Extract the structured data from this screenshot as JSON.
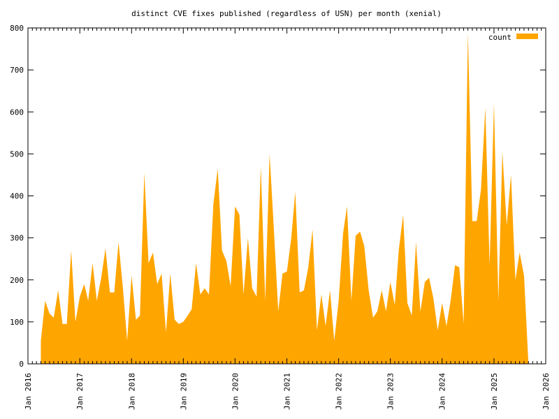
{
  "chart_data": {
    "type": "area",
    "title": "distinct CVE fixes published (regardless of USN) per month (xenial)",
    "xlabel": "",
    "ylabel": "",
    "color": "#ffa500",
    "legend": {
      "position": "top-right",
      "label": "count"
    },
    "grid": false,
    "ylim": [
      0,
      800
    ],
    "yticks": [
      0,
      100,
      200,
      300,
      400,
      500,
      600,
      700,
      800
    ],
    "xlim": [
      "2016-01-01",
      "2026-01-01"
    ],
    "xticks": [
      "2016-01-01",
      "2017-01-01",
      "2018-01-01",
      "2019-01-01",
      "2020-01-01",
      "2021-01-01",
      "2022-01-01",
      "2023-01-01",
      "2024-01-01",
      "2025-01-01",
      "2026-01-01"
    ],
    "xtick_labels": [
      "Jan 2016",
      "Jan 2017",
      "Jan 2018",
      "Jan 2019",
      "Jan 2020",
      "Jan 2021",
      "Jan 2022",
      "Jan 2023",
      "Jan 2024",
      "Jan 2025",
      "Jan 2026"
    ],
    "series": [
      {
        "name": "count",
        "x": [
          "2016-04-01",
          "2016-05-01",
          "2016-06-01",
          "2016-07-01",
          "2016-08-01",
          "2016-09-01",
          "2016-10-01",
          "2016-11-01",
          "2016-12-01",
          "2017-01-01",
          "2017-02-01",
          "2017-03-01",
          "2017-04-01",
          "2017-05-01",
          "2017-06-01",
          "2017-07-01",
          "2017-08-01",
          "2017-09-01",
          "2017-10-01",
          "2017-11-01",
          "2017-12-01",
          "2018-01-01",
          "2018-02-01",
          "2018-03-01",
          "2018-04-01",
          "2018-05-01",
          "2018-06-01",
          "2018-07-01",
          "2018-08-01",
          "2018-09-01",
          "2018-10-01",
          "2018-11-01",
          "2018-12-01",
          "2019-01-01",
          "2019-02-01",
          "2019-03-01",
          "2019-04-01",
          "2019-05-01",
          "2019-06-01",
          "2019-07-01",
          "2019-08-01",
          "2019-09-01",
          "2019-10-01",
          "2019-11-01",
          "2019-12-01",
          "2020-01-01",
          "2020-02-01",
          "2020-03-01",
          "2020-04-01",
          "2020-05-01",
          "2020-06-01",
          "2020-07-01",
          "2020-08-01",
          "2020-09-01",
          "2020-10-01",
          "2020-11-01",
          "2020-12-01",
          "2021-01-01",
          "2021-02-01",
          "2021-03-01",
          "2021-04-01",
          "2021-05-01",
          "2021-06-01",
          "2021-07-01",
          "2021-08-01",
          "2021-09-01",
          "2021-10-01",
          "2021-11-01",
          "2021-12-01",
          "2022-01-01",
          "2022-02-01",
          "2022-03-01",
          "2022-04-01",
          "2022-05-01",
          "2022-06-01",
          "2022-07-01",
          "2022-08-01",
          "2022-09-01",
          "2022-10-01",
          "2022-11-01",
          "2022-12-01",
          "2023-01-01",
          "2023-02-01",
          "2023-03-01",
          "2023-04-01",
          "2023-05-01",
          "2023-06-01",
          "2023-07-01",
          "2023-08-01",
          "2023-09-01",
          "2023-10-01",
          "2023-11-01",
          "2023-12-01",
          "2024-01-01",
          "2024-02-01",
          "2024-03-01",
          "2024-04-01",
          "2024-05-01",
          "2024-06-01",
          "2024-07-01",
          "2024-08-01",
          "2024-09-01",
          "2024-10-01",
          "2024-11-01",
          "2024-12-01",
          "2025-01-01",
          "2025-02-01",
          "2025-03-01",
          "2025-04-01",
          "2025-05-01",
          "2025-06-01",
          "2025-07-01",
          "2025-08-01",
          "2025-09-01"
        ],
        "values": [
          55,
          150,
          120,
          110,
          175,
          95,
          95,
          270,
          100,
          160,
          190,
          150,
          240,
          150,
          205,
          275,
          170,
          170,
          290,
          180,
          55,
          210,
          105,
          115,
          455,
          240,
          265,
          190,
          215,
          75,
          215,
          105,
          95,
          100,
          115,
          130,
          240,
          165,
          180,
          165,
          380,
          465,
          270,
          245,
          185,
          375,
          355,
          165,
          300,
          180,
          160,
          470,
          150,
          500,
          320,
          125,
          215,
          220,
          300,
          410,
          170,
          175,
          230,
          320,
          80,
          165,
          90,
          175,
          55,
          150,
          310,
          375,
          150,
          305,
          315,
          280,
          175,
          110,
          125,
          175,
          125,
          195,
          140,
          270,
          355,
          145,
          115,
          290,
          125,
          195,
          205,
          155,
          80,
          145,
          90,
          150,
          235,
          230,
          95,
          790,
          340,
          340,
          415,
          610,
          235,
          620,
          150,
          505,
          330,
          450,
          200,
          265,
          210,
          0
        ]
      }
    ]
  }
}
